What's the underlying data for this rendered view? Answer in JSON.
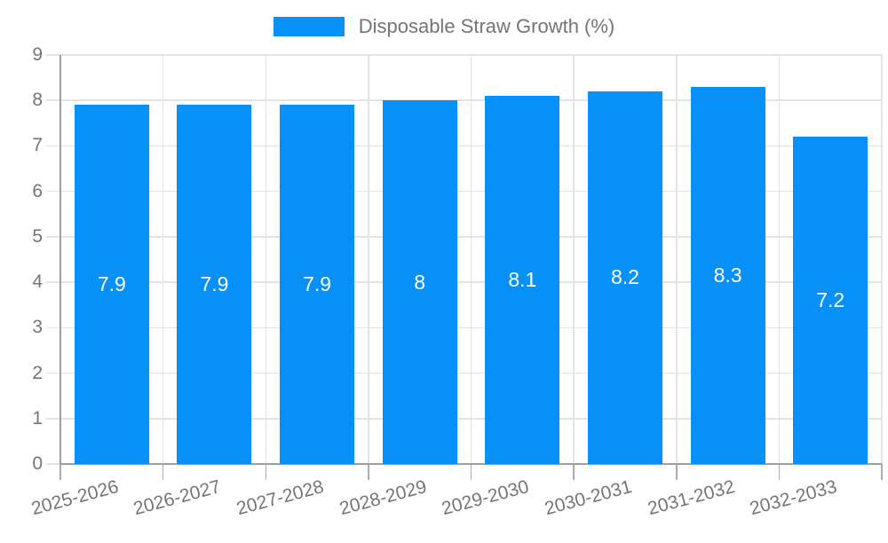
{
  "chart_data": {
    "type": "bar",
    "legend": "Disposable Straw Growth (%)",
    "legend_position": "top-center",
    "categories": [
      "2025-2026",
      "2026-2027",
      "2027-2028",
      "2028-2029",
      "2029-2030",
      "2030-2031",
      "2031-2032",
      "2032-2033"
    ],
    "values": [
      7.9,
      7.9,
      7.9,
      8,
      8.1,
      8.2,
      8.3,
      7.2
    ],
    "yticks": [
      "0",
      "1",
      "2",
      "3",
      "4",
      "5",
      "6",
      "7",
      "8",
      "9"
    ],
    "ylim": [
      0,
      9
    ],
    "grid": true,
    "xlabel": "",
    "ylabel": "",
    "colors": {
      "bar": "#0690f8",
      "axis_text": "#757575",
      "axis_line": "#9e9e9e",
      "gridline": "#e3e3e3",
      "tick_mark": "#adadad",
      "value_label": "#ffffff",
      "background": "#ffffff"
    }
  }
}
